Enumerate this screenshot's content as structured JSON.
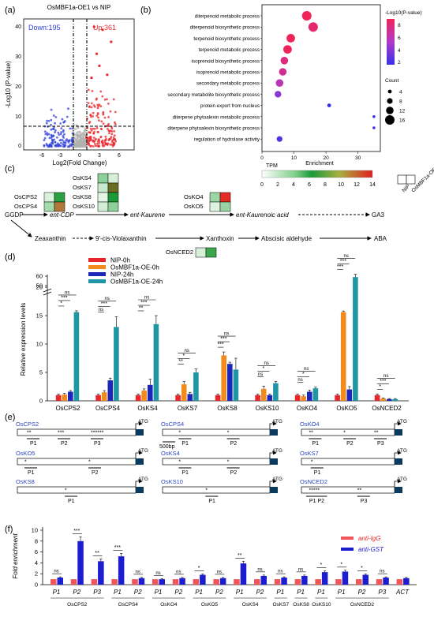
{
  "panels": {
    "a": "(a)",
    "b": "(b)",
    "c": "(c)",
    "d": "(d)",
    "e": "(e)",
    "f": "(f)"
  },
  "colors": {
    "up": "#e8262a",
    "down": "#3040d8",
    "ns_gray": "#b0b0b0",
    "nip0": "#e8262a",
    "oe0": "#f28a1c",
    "nip24": "#1c26b8",
    "oe24": "#1e96a4",
    "igg": "#f0555a",
    "gst": "#1c1cd0",
    "promoter_box": "#0a3a5c",
    "gene_name": "#2a46c0"
  },
  "volcano": {
    "title": "OsMBF1a-OE1 vs NIP",
    "down_label": "Down:195",
    "up_label": "Up:361",
    "xlabel": "Log2(Fold Change)",
    "ylabel": "-Log10 (P-value)",
    "xticks": [
      "-6",
      "-3",
      "0",
      "3",
      "6"
    ],
    "yticks": [
      "0",
      "10",
      "20",
      "30",
      "40"
    ]
  },
  "chart_data": [
    {
      "type": "scatter",
      "title": "",
      "xlabel": "Enrichment",
      "ylabel": "",
      "xlim": [
        0,
        37
      ],
      "xticks": [
        0,
        10,
        20,
        30
      ],
      "categories": [
        "diterpenoid metabolic process",
        "diterpenoid biosynthetic process",
        "terpenoid biosynthetic process",
        "terpenoid metabolic process",
        "isoprenoid biosynthetic process",
        "isoprenoid metabolic process",
        "secondary metabolic process",
        "secondary metabolite biosynthetic process",
        "protein export from nucleus",
        "diterpene phytoalexin metabolic process",
        "diterpene phytoalexin biosynthetic process",
        "regulation of hydrolase activity"
      ],
      "enrichment": [
        14,
        16,
        9,
        8,
        7,
        6.5,
        5.5,
        5,
        21,
        35,
        35,
        5.5
      ],
      "count": [
        16,
        16,
        14,
        14,
        12,
        12,
        12,
        10,
        4,
        2,
        2,
        8
      ],
      "neglog10p": [
        8,
        7.5,
        8,
        8,
        7,
        6.5,
        5.5,
        4,
        2,
        2,
        2,
        2.5
      ],
      "colorbar_title": "-Log10(P-value)",
      "colorbar_ticks": [
        "8",
        "6",
        "4",
        "2"
      ],
      "size_legend_title": "Count",
      "size_legend": [
        "4",
        "8",
        "12",
        "16"
      ]
    },
    {
      "type": "bar",
      "title": "",
      "xlabel": "",
      "ylabel": "Relative expression levels",
      "yticks_lower": [
        "0",
        "5",
        "10",
        "15",
        "20"
      ],
      "yticks_upper": [
        "50",
        "60"
      ],
      "categories": [
        "OsCPS2",
        "OsCPS4",
        "OsKS4",
        "OsKS7",
        "OsKS8",
        "OsKS10",
        "OsKO4",
        "OsKO5",
        "OsNCED2"
      ],
      "series": [
        {
          "name": "NIP-0h",
          "values": [
            1,
            1,
            1,
            1,
            1,
            1,
            1,
            1,
            1
          ],
          "err": [
            0.2,
            0.2,
            0.2,
            0.2,
            0.2,
            0.2,
            0.2,
            0.2,
            0.2
          ]
        },
        {
          "name": "OsMBF1a-OE-0h",
          "values": [
            1.1,
            1.5,
            1.8,
            2.9,
            8.0,
            2.1,
            0.8,
            22.0,
            0.4
          ],
          "err": [
            0.2,
            0.3,
            0.3,
            0.5,
            0.6,
            0.5,
            0.2,
            1.2,
            0.1
          ]
        },
        {
          "name": "NIP-24h",
          "values": [
            1.6,
            3.6,
            2.8,
            1.2,
            6.5,
            1.0,
            1.6,
            2.0,
            0.3
          ],
          "err": [
            0.2,
            0.4,
            1.0,
            0.3,
            0.3,
            0.2,
            0.3,
            0.5,
            0.1
          ]
        },
        {
          "name": "OsMBF1a-OE-24h",
          "values": [
            22.0,
            13.0,
            13.5,
            5.0,
            5.5,
            3.1,
            2.2,
            59.0,
            0.3
          ],
          "err": [
            1.4,
            1.8,
            1.5,
            0.6,
            2.0,
            0.3,
            0.2,
            3.0,
            0.1
          ]
        }
      ],
      "significance": [
        [
          "*",
          "***",
          "ns"
        ],
        [
          "ns",
          "***",
          "ns"
        ],
        [
          "**",
          "***",
          "ns"
        ],
        [
          "**",
          "*",
          "ns"
        ],
        [
          "***",
          "***",
          "ns"
        ],
        [
          "ns",
          "*",
          "ns"
        ],
        [
          "ns",
          "*",
          "ns"
        ],
        [
          "***",
          "***",
          "ns"
        ],
        [
          "*",
          "***",
          "ns"
        ]
      ]
    },
    {
      "type": "bar",
      "title": "",
      "xlabel": "",
      "ylabel": "Fold enrichment",
      "ylim": [
        0,
        10
      ],
      "yticks": [
        "0",
        "2",
        "4",
        "6",
        "8",
        "10"
      ],
      "categories": [
        "P1",
        "P2",
        "P3",
        "P1",
        "P2",
        "P1",
        "P2",
        "P1",
        "P2",
        "P1",
        "P2",
        "P1",
        "P1",
        "P1",
        "P1",
        "P2",
        "P3",
        "ACT"
      ],
      "groups": [
        {
          "name": "OsCPS2",
          "n": 3
        },
        {
          "name": "OsCPS4",
          "n": 2
        },
        {
          "name": "OsKO4",
          "n": 2
        },
        {
          "name": "OsKO5",
          "n": 2
        },
        {
          "name": "OsKS4",
          "n": 2
        },
        {
          "name": "OsKS7",
          "n": 1
        },
        {
          "name": "OsKS8",
          "n": 1
        },
        {
          "name": "OsKS10",
          "n": 1
        },
        {
          "name": "OsNCED2",
          "n": 3
        },
        {
          "name": "",
          "n": 1
        }
      ],
      "series": [
        {
          "name": "anti-IgG",
          "values": [
            1,
            1,
            1,
            1,
            1,
            1,
            1,
            1,
            1,
            1,
            1,
            1,
            1,
            1,
            1,
            1,
            1,
            1
          ]
        },
        {
          "name": "anti-GST",
          "values": [
            1.3,
            8.0,
            4.3,
            5.2,
            1.2,
            1.0,
            1.2,
            1.8,
            1.2,
            3.9,
            1.6,
            1.3,
            1.6,
            2.3,
            2.4,
            1.8,
            1.3,
            1.2
          ]
        }
      ],
      "significance": [
        "ns",
        "***",
        "**",
        "***",
        "ns",
        "ns",
        "ns",
        "*",
        "ns",
        "**",
        "ns",
        "ns",
        "ns",
        "*",
        "*",
        "*",
        "ns",
        ""
      ]
    }
  ],
  "pathway": {
    "heat_title": "TPM",
    "heat_ticks": [
      "0",
      "2",
      "4",
      "6",
      "8",
      "10",
      "12",
      "14"
    ],
    "col_headers": [
      "NIP",
      "OsMBF1a-OE1"
    ],
    "gene_groups": {
      "cps": [
        "OsCPS2",
        "OsCPS4"
      ],
      "ks": [
        "OsKS4",
        "OsKS7",
        "OsKS8",
        "OsKS10"
      ],
      "ko": [
        "OsKO4",
        "OsKO5"
      ],
      "nced": "OsNCED2"
    },
    "nodes": {
      "ggdp": "GGDP",
      "ent_cdp": "ent-CDP",
      "ent_kaurene": "ent-Kaurene",
      "ent_kaurenoic": "ent-Kaurenoic acid",
      "ga3": "GA3",
      "zeaxanthin": "Zeaxanthin",
      "violaxanthin": "9'-cis-Violaxanthin",
      "xanthoxin": "Xanthoxin",
      "abscisic_aldehyde": "Abscisic aldehyde",
      "aba": "ABA"
    }
  },
  "promoters": {
    "genes": [
      "OsCPS2",
      "OsCPS4",
      "OsKO4",
      "OsKO5",
      "OsKS4",
      "OsKS7",
      "OsKS8",
      "OsKS10",
      "OsNCED2"
    ],
    "atg": "ATG",
    "scale_bar": "500bp",
    "labels": {
      "p1": "P1",
      "p2": "P2",
      "p3": "P3"
    }
  }
}
